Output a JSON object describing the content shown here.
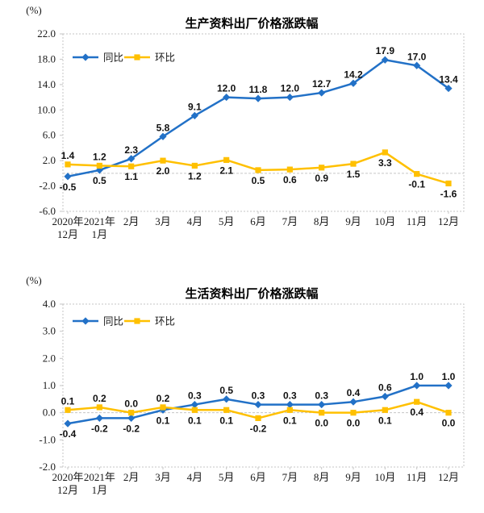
{
  "style": {
    "yoy_color": "#2271C7",
    "mom_color": "#FFC000",
    "axis_color": "#c6c6c6",
    "text_color": "#1a1a1a",
    "label_color": "#111111",
    "background": "#ffffff"
  },
  "legend": {
    "yoy_label": "同比",
    "mom_label": "环比"
  },
  "chart_data": [
    {
      "type": "line",
      "title": "生产资料出厂价格涨跌幅",
      "unit_label": "(%)",
      "ylim": [
        -6,
        22
      ],
      "yticks": [
        22,
        18,
        14,
        10,
        6,
        2,
        -2,
        -6
      ],
      "grid": false,
      "legend_position": "top-left",
      "categories": [
        "2020年\n12月",
        "2021年\n1月",
        "2月",
        "3月",
        "4月",
        "5月",
        "6月",
        "7月",
        "8月",
        "9月",
        "10月",
        "11月",
        "12月"
      ],
      "series": [
        {
          "name": "同比",
          "marker": "diamond",
          "color": "#2271C7",
          "values": [
            -0.5,
            0.5,
            2.3,
            5.8,
            9.1,
            12.0,
            11.8,
            12.0,
            12.7,
            14.2,
            17.9,
            17.0,
            13.4
          ],
          "label_pos": [
            "below",
            "below",
            "above",
            "above",
            "above",
            "above",
            "above",
            "above",
            "above",
            "above",
            "above",
            "above",
            "above"
          ]
        },
        {
          "name": "环比",
          "marker": "square",
          "color": "#FFC000",
          "values": [
            1.4,
            1.2,
            1.1,
            2.0,
            1.2,
            2.1,
            0.5,
            0.6,
            0.9,
            1.5,
            3.3,
            -0.1,
            -1.6
          ],
          "label_pos": [
            "above",
            "above",
            "below",
            "below",
            "below",
            "below",
            "below",
            "below",
            "below",
            "below",
            "below",
            "below",
            "below"
          ]
        }
      ]
    },
    {
      "type": "line",
      "title": "生活资料出厂价格涨跌幅",
      "unit_label": "(%)",
      "ylim": [
        -2,
        4
      ],
      "yticks": [
        4,
        3,
        2,
        1,
        0,
        -1,
        -2
      ],
      "grid": false,
      "legend_position": "top-left",
      "categories": [
        "2020年\n12月",
        "2021年\n1月",
        "2月",
        "3月",
        "4月",
        "5月",
        "6月",
        "7月",
        "8月",
        "9月",
        "10月",
        "11月",
        "12月"
      ],
      "series": [
        {
          "name": "同比",
          "marker": "diamond",
          "color": "#2271C7",
          "values": [
            -0.4,
            -0.2,
            -0.2,
            0.1,
            0.3,
            0.5,
            0.3,
            0.3,
            0.3,
            0.4,
            0.6,
            1.0,
            1.0
          ],
          "label_pos": [
            "below",
            "below",
            "below",
            "below",
            "above",
            "above",
            "above",
            "above",
            "above",
            "above",
            "above",
            "above",
            "above"
          ]
        },
        {
          "name": "环比",
          "marker": "square",
          "color": "#FFC000",
          "values": [
            0.1,
            0.2,
            0.0,
            0.2,
            0.1,
            0.1,
            -0.2,
            0.1,
            0.0,
            0.0,
            0.1,
            0.4,
            0.0
          ],
          "label_pos": [
            "above",
            "above",
            "above",
            "above",
            "below",
            "below",
            "below",
            "below",
            "below",
            "below",
            "below",
            "below",
            "below"
          ]
        }
      ]
    }
  ]
}
